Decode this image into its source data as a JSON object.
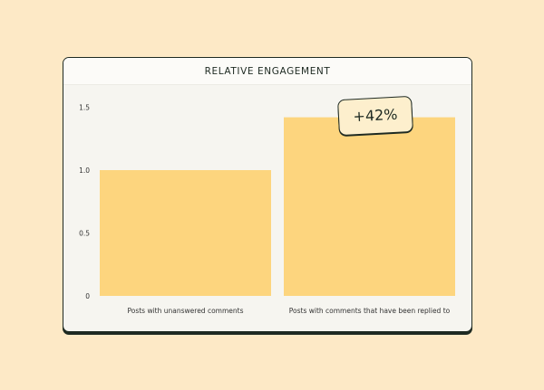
{
  "chart_data": {
    "type": "bar",
    "title": "RELATIVE ENGAGEMENT",
    "categories": [
      "Posts with unanswered comments",
      "Posts with comments that have been replied to"
    ],
    "values": [
      1.0,
      1.42
    ],
    "yticks": [
      "0",
      "0.5",
      "1.0",
      "1.5"
    ],
    "ylim": [
      0,
      1.5
    ],
    "grid": false,
    "annotation": "+42%",
    "bar_color": "#fdd57e"
  }
}
